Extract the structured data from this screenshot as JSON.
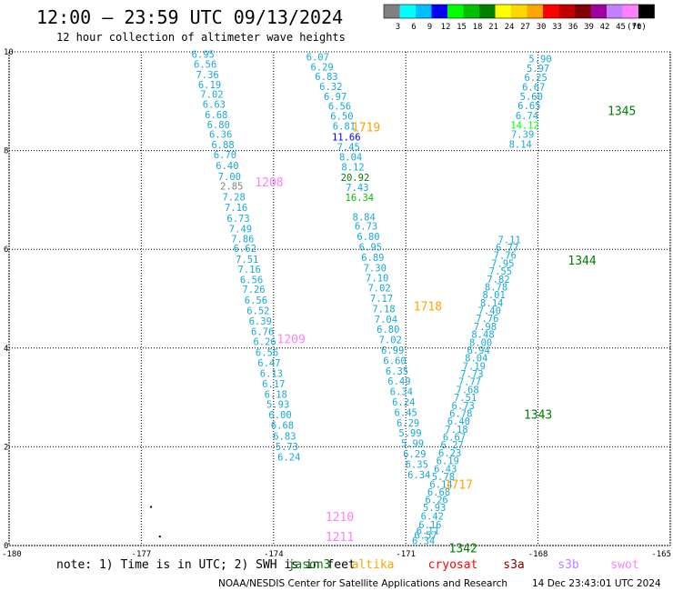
{
  "header": {
    "title": "12:00 – 23:59 UTC 09/13/2024",
    "subtitle": "12 hour collection of altimeter wave heights"
  },
  "colorbar": {
    "unit": "(ft)",
    "bins": [
      {
        "label": "3",
        "color": "#808080"
      },
      {
        "label": "6",
        "color": "#00ffff"
      },
      {
        "label": "9",
        "color": "#00bfff"
      },
      {
        "label": "12",
        "color": "#0000ff"
      },
      {
        "label": "15",
        "color": "#00ff00"
      },
      {
        "label": "18",
        "color": "#00c000"
      },
      {
        "label": "21",
        "color": "#008000"
      },
      {
        "label": "24",
        "color": "#ffff00"
      },
      {
        "label": "27",
        "color": "#ffd700"
      },
      {
        "label": "30",
        "color": "#ffa500"
      },
      {
        "label": "33",
        "color": "#ff0000"
      },
      {
        "label": "36",
        "color": "#c00000"
      },
      {
        "label": "39",
        "color": "#800000"
      },
      {
        "label": "42",
        "color": "#a000a0"
      },
      {
        "label": "45",
        "color": "#c080ff"
      },
      {
        "label": "70",
        "color": "#ff80ff"
      },
      {
        "label": "",
        "color": "#000000"
      }
    ]
  },
  "footer": {
    "note": "note:  1) Time is in UTC; 2) SWH is in feet",
    "credit": "NOAA/NESDIS Center for Satellite Applications and Research",
    "timestamp": "14 Dec 23:43:01 UTC 2024",
    "satellites": [
      {
        "name": "jason3",
        "color": "#008000"
      },
      {
        "name": "altika",
        "color": "#ffa500"
      },
      {
        "name": "cryosat",
        "color": "#ff0000"
      },
      {
        "name": "s3a",
        "color": "#800000"
      },
      {
        "name": "s3b",
        "color": "#c080ff"
      },
      {
        "name": "swot",
        "color": "#ff80ff"
      }
    ]
  },
  "chart_data": {
    "type": "scatter",
    "title": "12:00 – 23:59 UTC 09/13/2024",
    "subtitle": "12 hour collection of altimeter wave heights",
    "xlim": [
      -180,
      -165
    ],
    "ylim": [
      0,
      10
    ],
    "x_ticks": [
      "-180",
      "-177",
      "-174",
      "-171",
      "-168",
      "-165"
    ],
    "y_ticks": [
      "0",
      "2",
      "4",
      "6",
      "8",
      "10"
    ],
    "grid": true,
    "value_unit": "ft",
    "time_labels": [
      {
        "text": "1208",
        "lon": -174.1,
        "lat": 7.37,
        "color": "#ff80ff"
      },
      {
        "text": "1209",
        "lon": -173.6,
        "lat": 4.19,
        "color": "#ff80ff"
      },
      {
        "text": "1210",
        "lon": -172.5,
        "lat": 0.59,
        "color": "#ff80ff"
      },
      {
        "text": "1211",
        "lon": -172.5,
        "lat": 0.18,
        "color": "#ff80ff"
      },
      {
        "text": "1719",
        "lon": -171.9,
        "lat": 8.48,
        "color": "#ffa500"
      },
      {
        "text": "1718",
        "lon": -170.5,
        "lat": 4.85,
        "color": "#ffa500"
      },
      {
        "text": "1717",
        "lon": -169.8,
        "lat": 1.24,
        "color": "#ffa500"
      },
      {
        "text": "1342",
        "lon": -169.7,
        "lat": -0.05,
        "color": "#008000"
      },
      {
        "text": "1343",
        "lon": -168.0,
        "lat": 2.66,
        "color": "#008000"
      },
      {
        "text": "1344",
        "lon": -167.0,
        "lat": 5.78,
        "color": "#008000"
      },
      {
        "text": "1345",
        "lon": -166.1,
        "lat": 8.81,
        "color": "#008000"
      }
    ],
    "series": [
      {
        "name": "1208-1211",
        "points": [
          {
            "lon": -175.6,
            "lat": 9.95,
            "swh": "6.95"
          },
          {
            "lon": -175.55,
            "lat": 9.75,
            "swh": "6.56"
          },
          {
            "lon": -175.5,
            "lat": 9.54,
            "swh": "7.36"
          },
          {
            "lon": -175.45,
            "lat": 9.34,
            "swh": "6.19"
          },
          {
            "lon": -175.4,
            "lat": 9.14,
            "swh": "7.02"
          },
          {
            "lon": -175.35,
            "lat": 8.94,
            "swh": "6.63"
          },
          {
            "lon": -175.3,
            "lat": 8.73,
            "swh": "6.68"
          },
          {
            "lon": -175.25,
            "lat": 8.53,
            "swh": "6.80"
          },
          {
            "lon": -175.2,
            "lat": 8.33,
            "swh": "6.36"
          },
          {
            "lon": -175.15,
            "lat": 8.12,
            "swh": "6.88"
          },
          {
            "lon": -175.1,
            "lat": 7.92,
            "swh": "6.70"
          },
          {
            "lon": -175.05,
            "lat": 7.7,
            "swh": "6.40"
          },
          {
            "lon": -175.0,
            "lat": 7.48,
            "swh": "7.00"
          },
          {
            "lon": -174.95,
            "lat": 7.28,
            "swh": "2.85",
            "color": "#808080"
          },
          {
            "lon": -174.9,
            "lat": 7.06,
            "swh": "7.28"
          },
          {
            "lon": -174.85,
            "lat": 6.85,
            "swh": "7.16"
          },
          {
            "lon": -174.8,
            "lat": 6.63,
            "swh": "6.73"
          },
          {
            "lon": -174.75,
            "lat": 6.42,
            "swh": "7.49"
          },
          {
            "lon": -174.7,
            "lat": 6.22,
            "swh": "7.86"
          },
          {
            "lon": -174.65,
            "lat": 6.02,
            "swh": "6.62"
          },
          {
            "lon": -174.6,
            "lat": 5.8,
            "swh": "7.51"
          },
          {
            "lon": -174.55,
            "lat": 5.6,
            "swh": "7.16"
          },
          {
            "lon": -174.5,
            "lat": 5.39,
            "swh": "6.56"
          },
          {
            "lon": -174.45,
            "lat": 5.19,
            "swh": "7.26"
          },
          {
            "lon": -174.4,
            "lat": 4.97,
            "swh": "6.56"
          },
          {
            "lon": -174.35,
            "lat": 4.76,
            "swh": "6.52"
          },
          {
            "lon": -174.3,
            "lat": 4.55,
            "swh": "6.39"
          },
          {
            "lon": -174.25,
            "lat": 4.34,
            "swh": "6.76"
          },
          {
            "lon": -174.2,
            "lat": 4.13,
            "swh": "6.26"
          },
          {
            "lon": -174.15,
            "lat": 3.91,
            "swh": "6.56"
          },
          {
            "lon": -174.1,
            "lat": 3.7,
            "swh": "6.47"
          },
          {
            "lon": -174.05,
            "lat": 3.49,
            "swh": "6.13"
          },
          {
            "lon": -174.0,
            "lat": 3.28,
            "swh": "6.17"
          },
          {
            "lon": -173.95,
            "lat": 3.07,
            "swh": "6.18"
          },
          {
            "lon": -173.9,
            "lat": 2.86,
            "swh": "5.93"
          },
          {
            "lon": -173.85,
            "lat": 2.65,
            "swh": "6.00"
          },
          {
            "lon": -173.8,
            "lat": 2.44,
            "swh": "6.68"
          },
          {
            "lon": -173.75,
            "lat": 2.22,
            "swh": "6.83"
          },
          {
            "lon": -173.7,
            "lat": 2.01,
            "swh": "5.73"
          },
          {
            "lon": -173.65,
            "lat": 1.8,
            "swh": "6.24"
          }
        ]
      },
      {
        "name": "1717-1719",
        "points": [
          {
            "lon": -173.0,
            "lat": 9.9,
            "swh": "6.07"
          },
          {
            "lon": -172.9,
            "lat": 9.7,
            "swh": "6.29"
          },
          {
            "lon": -172.8,
            "lat": 9.5,
            "swh": "6.83"
          },
          {
            "lon": -172.7,
            "lat": 9.3,
            "swh": "6.32"
          },
          {
            "lon": -172.6,
            "lat": 9.1,
            "swh": "6.97"
          },
          {
            "lon": -172.5,
            "lat": 8.9,
            "swh": "6.56"
          },
          {
            "lon": -172.45,
            "lat": 8.7,
            "swh": "6.50"
          },
          {
            "lon": -172.4,
            "lat": 8.5,
            "swh": "6.81"
          },
          {
            "lon": -172.35,
            "lat": 8.28,
            "swh": "11.66",
            "color": "#0000ff"
          },
          {
            "lon": -172.3,
            "lat": 8.08,
            "swh": "7.45"
          },
          {
            "lon": -172.25,
            "lat": 7.87,
            "swh": "8.04"
          },
          {
            "lon": -172.2,
            "lat": 7.67,
            "swh": "8.12"
          },
          {
            "lon": -172.15,
            "lat": 7.46,
            "swh": "20.92",
            "color": "#008000"
          },
          {
            "lon": -172.1,
            "lat": 7.26,
            "swh": "7.43"
          },
          {
            "lon": -172.05,
            "lat": 7.05,
            "swh": "16.34",
            "color": "#00c000"
          },
          {
            "lon": -171.95,
            "lat": 6.66,
            "swh": "8.84"
          },
          {
            "lon": -171.9,
            "lat": 6.47,
            "swh": "6.73"
          },
          {
            "lon": -171.85,
            "lat": 6.26,
            "swh": "6.80"
          },
          {
            "lon": -171.8,
            "lat": 6.05,
            "swh": "6.95"
          },
          {
            "lon": -171.75,
            "lat": 5.84,
            "swh": "6.89"
          },
          {
            "lon": -171.7,
            "lat": 5.63,
            "swh": "7.30"
          },
          {
            "lon": -171.65,
            "lat": 5.42,
            "swh": "7.10"
          },
          {
            "lon": -171.6,
            "lat": 5.22,
            "swh": "7.02"
          },
          {
            "lon": -171.55,
            "lat": 5.01,
            "swh": "7.17"
          },
          {
            "lon": -171.5,
            "lat": 4.8,
            "swh": "7.18"
          },
          {
            "lon": -171.45,
            "lat": 4.59,
            "swh": "7.04"
          },
          {
            "lon": -171.4,
            "lat": 4.38,
            "swh": "6.80"
          },
          {
            "lon": -171.35,
            "lat": 4.17,
            "swh": "7.02"
          },
          {
            "lon": -171.3,
            "lat": 3.96,
            "swh": "6.99"
          },
          {
            "lon": -171.25,
            "lat": 3.75,
            "swh": "6.60"
          },
          {
            "lon": -171.2,
            "lat": 3.54,
            "swh": "6.35"
          },
          {
            "lon": -171.15,
            "lat": 3.33,
            "swh": "6.49"
          },
          {
            "lon": -171.1,
            "lat": 3.12,
            "swh": "6.34"
          },
          {
            "lon": -171.05,
            "lat": 2.91,
            "swh": "6.24"
          },
          {
            "lon": -171.0,
            "lat": 2.7,
            "swh": "6.45"
          },
          {
            "lon": -170.95,
            "lat": 2.49,
            "swh": "6.29"
          },
          {
            "lon": -170.9,
            "lat": 2.28,
            "swh": "5.99"
          },
          {
            "lon": -170.85,
            "lat": 2.07,
            "swh": "5.99"
          },
          {
            "lon": -170.8,
            "lat": 1.86,
            "swh": "6.29"
          },
          {
            "lon": -170.75,
            "lat": 1.65,
            "swh": "6.35"
          },
          {
            "lon": -170.7,
            "lat": 1.44,
            "swh": "6.34"
          }
        ]
      },
      {
        "name": "1342-1345",
        "points": [
          {
            "lon": -170.6,
            "lat": 0.1,
            "swh": "6.34"
          },
          {
            "lon": -170.55,
            "lat": 0.21,
            "swh": "6.57"
          },
          {
            "lon": -170.5,
            "lat": 0.3,
            "swh": "6.11"
          },
          {
            "lon": -170.45,
            "lat": 0.42,
            "swh": "6.16"
          },
          {
            "lon": -170.4,
            "lat": 0.6,
            "swh": "6.42"
          },
          {
            "lon": -170.35,
            "lat": 0.77,
            "swh": "5.93"
          },
          {
            "lon": -170.3,
            "lat": 0.93,
            "swh": "6.26"
          },
          {
            "lon": -170.25,
            "lat": 1.09,
            "swh": "6.68"
          },
          {
            "lon": -170.2,
            "lat": 1.24,
            "swh": "6.14"
          },
          {
            "lon": -170.15,
            "lat": 1.4,
            "swh": "5.78"
          },
          {
            "lon": -170.1,
            "lat": 1.56,
            "swh": "6.43"
          },
          {
            "lon": -170.05,
            "lat": 1.72,
            "swh": "6.19"
          },
          {
            "lon": -170.0,
            "lat": 1.88,
            "swh": "6.23"
          },
          {
            "lon": -169.95,
            "lat": 2.04,
            "swh": "6.27"
          },
          {
            "lon": -169.9,
            "lat": 2.2,
            "swh": "6.67"
          },
          {
            "lon": -169.85,
            "lat": 2.36,
            "swh": "7.18"
          },
          {
            "lon": -169.8,
            "lat": 2.52,
            "swh": "6.40"
          },
          {
            "lon": -169.75,
            "lat": 2.68,
            "swh": "6.78"
          },
          {
            "lon": -169.7,
            "lat": 2.84,
            "swh": "6.73"
          },
          {
            "lon": -169.65,
            "lat": 3.0,
            "swh": "7.51"
          },
          {
            "lon": -169.6,
            "lat": 3.16,
            "swh": "7.68"
          },
          {
            "lon": -169.55,
            "lat": 3.32,
            "swh": "7.77"
          },
          {
            "lon": -169.5,
            "lat": 3.48,
            "swh": "7.73"
          },
          {
            "lon": -169.45,
            "lat": 3.64,
            "swh": "7.19"
          },
          {
            "lon": -169.4,
            "lat": 3.8,
            "swh": "8.04"
          },
          {
            "lon": -169.35,
            "lat": 3.96,
            "swh": "6.94"
          },
          {
            "lon": -169.3,
            "lat": 4.12,
            "swh": "8.00"
          },
          {
            "lon": -169.25,
            "lat": 4.28,
            "swh": "8.48"
          },
          {
            "lon": -169.2,
            "lat": 4.44,
            "swh": "7.98"
          },
          {
            "lon": -169.15,
            "lat": 4.6,
            "swh": "7.76"
          },
          {
            "lon": -169.1,
            "lat": 4.76,
            "swh": "7.40"
          },
          {
            "lon": -169.05,
            "lat": 4.92,
            "swh": "8.14"
          },
          {
            "lon": -169.0,
            "lat": 5.08,
            "swh": "8.01"
          },
          {
            "lon": -168.95,
            "lat": 5.24,
            "swh": "8.78"
          },
          {
            "lon": -168.9,
            "lat": 5.4,
            "swh": "7.82"
          },
          {
            "lon": -168.85,
            "lat": 5.56,
            "swh": "7.55"
          },
          {
            "lon": -168.8,
            "lat": 5.72,
            "swh": "7.95"
          },
          {
            "lon": -168.75,
            "lat": 5.88,
            "swh": "7.76"
          },
          {
            "lon": -168.7,
            "lat": 6.04,
            "swh": "6.77"
          },
          {
            "lon": -168.65,
            "lat": 6.2,
            "swh": "7.11"
          },
          {
            "lon": -168.4,
            "lat": 8.13,
            "swh": "8.14"
          },
          {
            "lon": -168.35,
            "lat": 8.33,
            "swh": "7.39"
          },
          {
            "lon": -168.3,
            "lat": 8.52,
            "swh": "14.12",
            "color": "#00ff00"
          },
          {
            "lon": -168.25,
            "lat": 8.71,
            "swh": "6.74"
          },
          {
            "lon": -168.2,
            "lat": 8.91,
            "swh": "6.65"
          },
          {
            "lon": -168.15,
            "lat": 9.1,
            "swh": "5.60"
          },
          {
            "lon": -168.1,
            "lat": 9.29,
            "swh": "6.67"
          },
          {
            "lon": -168.05,
            "lat": 9.48,
            "swh": "6.25"
          },
          {
            "lon": -168.0,
            "lat": 9.67,
            "swh": "5.97"
          },
          {
            "lon": -167.95,
            "lat": 9.86,
            "swh": "5.90"
          }
        ]
      }
    ],
    "stray_marks": [
      {
        "lon": -176.8,
        "lat": 0.8
      },
      {
        "lon": -176.6,
        "lat": 0.2
      }
    ]
  }
}
